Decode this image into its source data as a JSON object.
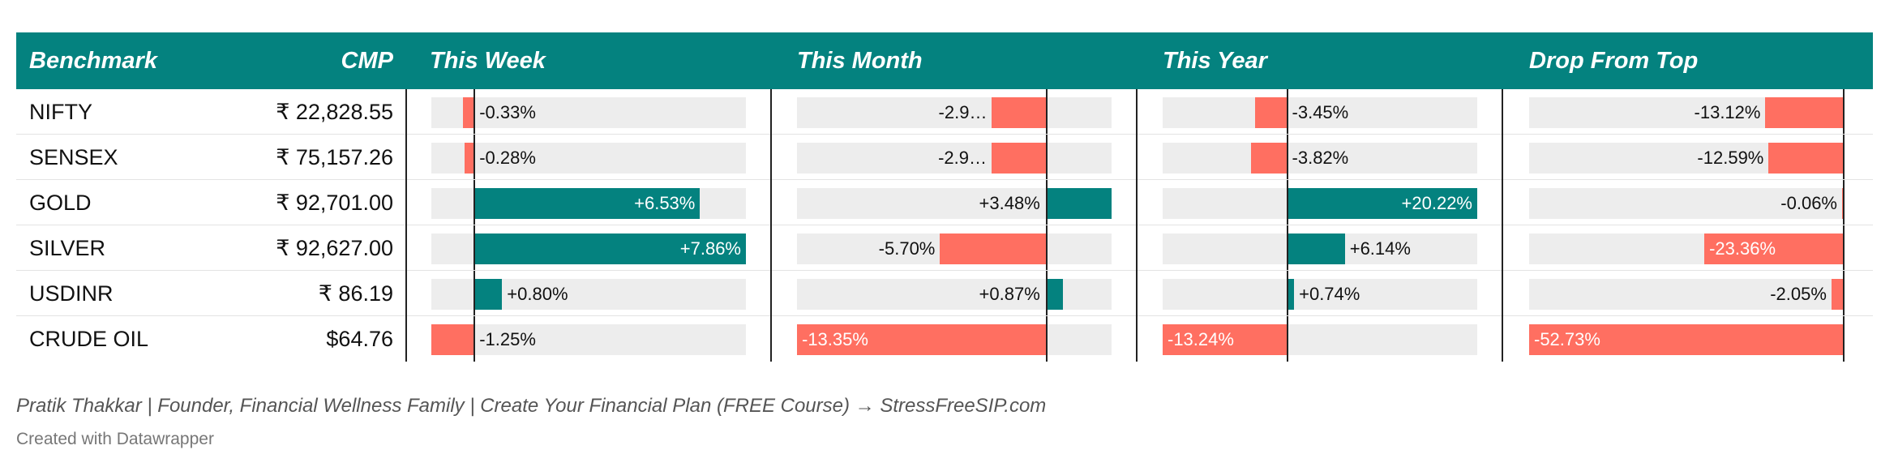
{
  "chart_data": {
    "type": "table",
    "columns": [
      "Benchmark",
      "CMP",
      "This Week",
      "This Month",
      "This Year",
      "Drop From Top"
    ],
    "rows": [
      {
        "benchmark": "NIFTY",
        "cmp": "₹ 22,828.55",
        "week": -0.33,
        "week_label": "-0.33%",
        "month": -2.92,
        "month_label": "-2.9…",
        "year": -3.45,
        "year_label": "-3.45%",
        "drop": -13.12,
        "drop_label": "-13.12%"
      },
      {
        "benchmark": "SENSEX",
        "cmp": "₹ 75,157.26",
        "week": -0.28,
        "week_label": "-0.28%",
        "month": -2.94,
        "month_label": "-2.9…",
        "year": -3.82,
        "year_label": "-3.82%",
        "drop": -12.59,
        "drop_label": "-12.59%"
      },
      {
        "benchmark": "GOLD",
        "cmp": "₹ 92,701.00",
        "week": 6.53,
        "week_label": "+6.53%",
        "month": 3.48,
        "month_label": "+3.48%",
        "year": 20.22,
        "year_label": "+20.22%",
        "drop": -0.06,
        "drop_label": "-0.06%"
      },
      {
        "benchmark": "SILVER",
        "cmp": "₹ 92,627.00",
        "week": 7.86,
        "week_label": "+7.86%",
        "month": -5.7,
        "month_label": "-5.70%",
        "year": 6.14,
        "year_label": "+6.14%",
        "drop": -23.36,
        "drop_label": "-23.36%"
      },
      {
        "benchmark": "USDINR",
        "cmp": "₹ 86.19",
        "week": 0.8,
        "week_label": "+0.80%",
        "month": 0.87,
        "month_label": "+0.87%",
        "year": 0.74,
        "year_label": "+0.74%",
        "drop": -2.05,
        "drop_label": "-2.05%"
      },
      {
        "benchmark": "CRUDE OIL",
        "cmp": "$64.76",
        "week": -1.25,
        "week_label": "-1.25%",
        "month": -13.35,
        "month_label": "-13.35%",
        "year": -13.24,
        "year_label": "-13.24%",
        "drop": -52.73,
        "drop_label": "-52.73%"
      }
    ],
    "ranges": {
      "week": [
        -1.25,
        7.86
      ],
      "month": [
        -13.35,
        3.48
      ],
      "year": [
        -13.24,
        20.22
      ],
      "drop": [
        -52.73,
        0
      ]
    },
    "colors": {
      "header": "#04827f",
      "positive": "#04827f",
      "negative": "#ff6f61",
      "track": "#ededed"
    }
  },
  "footer": {
    "credit": "Pratik Thakkar | Founder, Financial Wellness Family | Create Your Financial Plan (FREE Course) → StressFreeSIP.com",
    "created_with": "Created with Datawrapper"
  }
}
